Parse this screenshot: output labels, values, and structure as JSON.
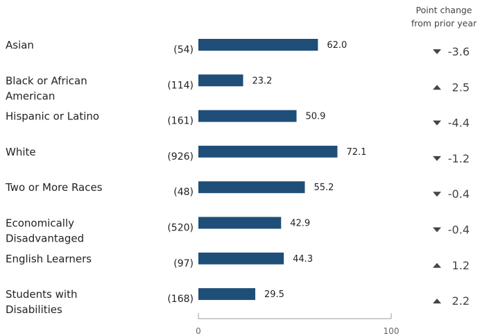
{
  "chart_data": {
    "type": "bar",
    "orientation": "horizontal",
    "change_header": [
      "Point change",
      "from prior year"
    ],
    "categories": [
      "Asian",
      "Black or African American",
      "Hispanic or Latino",
      "White",
      "Two or More Races",
      "Economically Disadvantaged",
      "English Learners",
      "Students with Disabilities"
    ],
    "category_lines": [
      [
        "Asian"
      ],
      [
        "Black or African",
        "American"
      ],
      [
        "Hispanic or Latino"
      ],
      [
        "White"
      ],
      [
        "Two or More Races"
      ],
      [
        "Economically",
        "Disadvantaged"
      ],
      [
        "English Learners"
      ],
      [
        "Students with",
        "Disabilities"
      ]
    ],
    "counts": [
      "(54)",
      "(114)",
      "(161)",
      "(926)",
      "(48)",
      "(520)",
      "(97)",
      "(168)"
    ],
    "values": [
      62.0,
      23.2,
      50.9,
      72.1,
      55.2,
      42.9,
      44.3,
      29.5
    ],
    "value_labels": [
      "62.0",
      "23.2",
      "50.9",
      "72.1",
      "55.2",
      "42.9",
      "44.3",
      "29.5"
    ],
    "changes": [
      {
        "direction": "down",
        "label": "-3.6"
      },
      {
        "direction": "up",
        "label": "2.5"
      },
      {
        "direction": "down",
        "label": "-4.4"
      },
      {
        "direction": "down",
        "label": "-1.2"
      },
      {
        "direction": "down",
        "label": "-0.4"
      },
      {
        "direction": "down",
        "label": "-0.4"
      },
      {
        "direction": "up",
        "label": "1.2"
      },
      {
        "direction": "up",
        "label": "2.2"
      }
    ],
    "xlim": [
      0,
      100
    ],
    "x_ticks": [
      0,
      100
    ],
    "grid": false,
    "bar_color": "#1f4e79"
  }
}
